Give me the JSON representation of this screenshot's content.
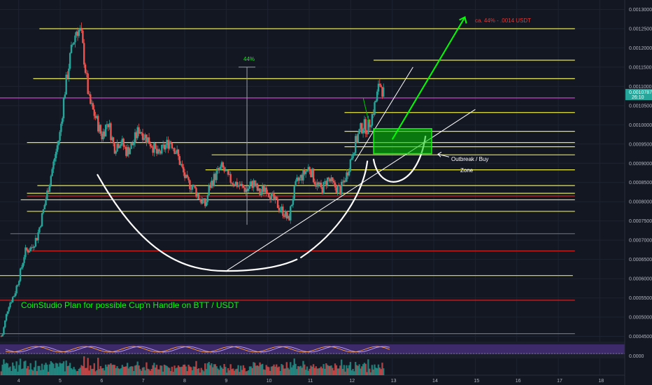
{
  "chart_data": {
    "type": "candlestick",
    "title": "",
    "pair": "BTT / USDT",
    "price_ticks": [
      "0.0013000",
      "0.0012500",
      "0.0012000",
      "0.0011500",
      "0.0011000",
      "0.0010500",
      "0.0010000",
      "0.0009500",
      "0.0009000",
      "0.0008500",
      "0.0008000",
      "0.0007500",
      "0.0007000",
      "0.0006500",
      "0.0006000",
      "0.0005500",
      "0.0005000",
      "0.0004500",
      "0.0000"
    ],
    "price_tick_values": [
      0.0013,
      0.00125,
      0.0012,
      0.00115,
      0.0011,
      0.00105,
      0.001,
      0.00095,
      0.0009,
      0.00085,
      0.0008,
      0.00075,
      0.0007,
      0.00065,
      0.0006,
      0.00055,
      0.0005,
      0.00045
    ],
    "x_ticks": [
      "4",
      "5",
      "6",
      "7",
      "8",
      "9",
      "10",
      "11",
      "12",
      "13",
      "14",
      "15",
      "16",
      "17",
      "18"
    ],
    "x_tick_values": [
      4,
      5,
      6,
      7,
      8,
      9,
      10,
      11,
      12,
      13,
      14,
      15,
      16,
      17,
      18
    ],
    "ylim": [
      0.00044,
      0.00131
    ],
    "xlim": [
      3.55,
      18.6
    ],
    "current_price_label": "0.0010787",
    "current_price": 0.0010787,
    "countdown_label": "26:10",
    "grid": true,
    "closes": [
      {
        "x": 3.6,
        "y": 0.00045
      },
      {
        "x": 3.75,
        "y": 0.00053
      },
      {
        "x": 3.9,
        "y": 0.00056
      },
      {
        "x": 4.05,
        "y": 0.00062
      },
      {
        "x": 4.15,
        "y": 0.00067
      },
      {
        "x": 4.3,
        "y": 0.00068
      },
      {
        "x": 4.45,
        "y": 0.00071
      },
      {
        "x": 4.6,
        "y": 0.00078
      },
      {
        "x": 4.7,
        "y": 0.00083
      },
      {
        "x": 4.8,
        "y": 0.00088
      },
      {
        "x": 4.9,
        "y": 0.00093
      },
      {
        "x": 5.0,
        "y": 0.00098
      },
      {
        "x": 5.1,
        "y": 0.00108
      },
      {
        "x": 5.2,
        "y": 0.00115
      },
      {
        "x": 5.3,
        "y": 0.00121
      },
      {
        "x": 5.4,
        "y": 0.00125
      },
      {
        "x": 5.5,
        "y": 0.00124
      },
      {
        "x": 5.6,
        "y": 0.00115
      },
      {
        "x": 5.7,
        "y": 0.00106
      },
      {
        "x": 5.85,
        "y": 0.00102
      },
      {
        "x": 6.0,
        "y": 0.00097
      },
      {
        "x": 6.15,
        "y": 0.00101
      },
      {
        "x": 6.3,
        "y": 0.00094
      },
      {
        "x": 6.45,
        "y": 0.00096
      },
      {
        "x": 6.6,
        "y": 0.00093
      },
      {
        "x": 6.75,
        "y": 0.00095
      },
      {
        "x": 6.9,
        "y": 0.00099
      },
      {
        "x": 7.05,
        "y": 0.00097
      },
      {
        "x": 7.2,
        "y": 0.00095
      },
      {
        "x": 7.35,
        "y": 0.00092
      },
      {
        "x": 7.5,
        "y": 0.00094
      },
      {
        "x": 7.65,
        "y": 0.00096
      },
      {
        "x": 7.8,
        "y": 0.00093
      },
      {
        "x": 7.95,
        "y": 0.00088
      },
      {
        "x": 8.05,
        "y": 0.00085
      },
      {
        "x": 8.2,
        "y": 0.00084
      },
      {
        "x": 8.35,
        "y": 0.00081
      },
      {
        "x": 8.5,
        "y": 0.00079
      },
      {
        "x": 8.6,
        "y": 0.00084
      },
      {
        "x": 8.75,
        "y": 0.00087
      },
      {
        "x": 8.9,
        "y": 0.00089
      },
      {
        "x": 9.05,
        "y": 0.00086
      },
      {
        "x": 9.2,
        "y": 0.00085
      },
      {
        "x": 9.35,
        "y": 0.00084
      },
      {
        "x": 9.5,
        "y": 0.00083
      },
      {
        "x": 9.65,
        "y": 0.00085
      },
      {
        "x": 9.8,
        "y": 0.00082
      },
      {
        "x": 9.95,
        "y": 0.00084
      },
      {
        "x": 10.1,
        "y": 0.00081
      },
      {
        "x": 10.25,
        "y": 0.00079
      },
      {
        "x": 10.4,
        "y": 0.00077
      },
      {
        "x": 10.5,
        "y": 0.00075
      },
      {
        "x": 10.6,
        "y": 0.00081
      },
      {
        "x": 10.7,
        "y": 0.00085
      },
      {
        "x": 10.85,
        "y": 0.00087
      },
      {
        "x": 11.0,
        "y": 0.00089
      },
      {
        "x": 11.15,
        "y": 0.00085
      },
      {
        "x": 11.3,
        "y": 0.00083
      },
      {
        "x": 11.45,
        "y": 0.00086
      },
      {
        "x": 11.6,
        "y": 0.00084
      },
      {
        "x": 11.75,
        "y": 0.00083
      },
      {
        "x": 11.9,
        "y": 0.00087
      },
      {
        "x": 12.0,
        "y": 0.00091
      },
      {
        "x": 12.1,
        "y": 0.00095
      },
      {
        "x": 12.2,
        "y": 0.00098
      },
      {
        "x": 12.3,
        "y": 0.001
      },
      {
        "x": 12.4,
        "y": 0.00099
      },
      {
        "x": 12.5,
        "y": 0.00102
      },
      {
        "x": 12.6,
        "y": 0.00106
      },
      {
        "x": 12.7,
        "y": 0.00111
      },
      {
        "x": 12.8,
        "y": 0.00108
      }
    ],
    "horizontal_levels": [
      {
        "price": 0.00125,
        "x1": 4.5,
        "x2": 17.4,
        "color": "#e8e84a"
      },
      {
        "price": 0.001168,
        "x1": 12.55,
        "x2": 17.4,
        "color": "#e8e84a"
      },
      {
        "price": 0.00112,
        "x1": 4.35,
        "x2": 17.4,
        "color": "#e8e84a"
      },
      {
        "price": 0.00107,
        "x1": 3.55,
        "x2": 17.4,
        "color": "#d63bd6"
      },
      {
        "price": 0.001032,
        "x1": 11.85,
        "x2": 17.4,
        "color": "#e8e84a"
      },
      {
        "price": 0.000983,
        "x1": 11.85,
        "x2": 17.4,
        "color": "#e8e84a"
      },
      {
        "price": 0.000954,
        "x1": 4.2,
        "x2": 17.4,
        "color": "#e8e84a"
      },
      {
        "price": 0.000943,
        "x1": 11.85,
        "x2": 17.4,
        "color": "#e8e84a"
      },
      {
        "price": 0.000922,
        "x1": 8.65,
        "x2": 17.4,
        "color": "#e8e84a"
      },
      {
        "price": 0.000883,
        "x1": 8.5,
        "x2": 17.4,
        "color": "#e8e84a"
      },
      {
        "price": 0.000842,
        "x1": 4.45,
        "x2": 17.4,
        "color": "#e8e84a"
      },
      {
        "price": 0.000822,
        "x1": 4.2,
        "x2": 17.4,
        "color": "#e8e84a"
      },
      {
        "price": 0.000815,
        "x1": 4.2,
        "x2": 17.4,
        "color": "#cc2222"
      },
      {
        "price": 0.000805,
        "x1": 4.05,
        "x2": 17.4,
        "color": "#e8e84a"
      },
      {
        "price": 0.000775,
        "x1": 4.2,
        "x2": 17.4,
        "color": "#e8e84a"
      },
      {
        "price": 0.000717,
        "x1": 3.8,
        "x2": 17.4,
        "color": "#6b6f7a"
      },
      {
        "price": 0.000672,
        "x1": 4.2,
        "x2": 17.4,
        "color": "#cc2222"
      },
      {
        "price": 0.000608,
        "x1": 3.55,
        "x2": 17.35,
        "color": "#e8e84a"
      },
      {
        "price": 0.000544,
        "x1": 3.55,
        "x2": 17.4,
        "color": "#cc2222"
      },
      {
        "price": 0.000457,
        "x1": 3.55,
        "x2": 17.4,
        "color": "#6b6f7a"
      }
    ],
    "annotations": {
      "target_label": "ca. 44% - .0014 USDT",
      "measure_label": "44%",
      "zone_label_1": "Outbreak / Buy",
      "zone_label_2": "Zone",
      "plan_text": "CoinStudio Plan for possible Cup'n Handle on BTT / USDT"
    },
    "buy_zone": {
      "x1": 12.55,
      "x2": 13.95,
      "y1": 0.000925,
      "y2": 0.00099
    },
    "target_arrow": {
      "x1": 13.0,
      "x2": 14.75,
      "y1": 0.000962,
      "y2": 0.00128
    },
    "trendlines": [
      {
        "x1": 9.0,
        "y1": 0.00062,
        "x2": 15.0,
        "y2": 0.00104
      },
      {
        "x1": 12.1,
        "y1": 0.000905,
        "x2": 13.5,
        "y2": 0.00115
      }
    ],
    "measure_line": {
      "x": 9.5,
      "y1": 0.00074,
      "y2": 0.00115
    },
    "colors": {
      "background": "#131722",
      "up": "#26a69a",
      "down": "#ef5350",
      "accent": "#00ff00",
      "target_text": "#e53935",
      "oscillator": "#3d2a6b"
    }
  }
}
